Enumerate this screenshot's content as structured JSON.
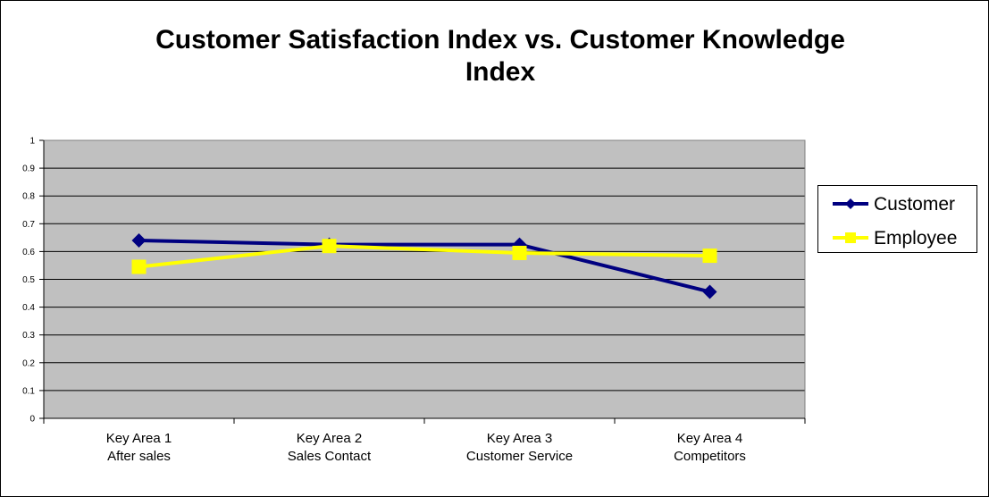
{
  "chart_data": {
    "type": "line",
    "title_lines": [
      "Customer Satisfaction Index vs. Customer Knowledge",
      "Index"
    ],
    "categories": [
      [
        "Key Area 1",
        "After sales"
      ],
      [
        "Key Area 2",
        "Sales Contact"
      ],
      [
        "Key Area 3",
        "Customer Service"
      ],
      [
        "Key Area 4",
        "Competitors"
      ]
    ],
    "ylim": [
      0,
      1
    ],
    "yticks": [
      "0",
      "0.1",
      "0.2",
      "0.3",
      "0.4",
      "0.5",
      "0.6",
      "0.7",
      "0.8",
      "0.9",
      "1"
    ],
    "grid": true,
    "legend_position": "right",
    "series": [
      {
        "name": "Customer",
        "values": [
          0.64,
          0.625,
          0.625,
          0.455
        ],
        "color": "#000080",
        "marker": "diamond"
      },
      {
        "name": "Employee",
        "values": [
          0.545,
          0.62,
          0.595,
          0.585
        ],
        "color": "#FFFF00",
        "marker": "square"
      }
    ],
    "plot_background": "#C0C0C0"
  }
}
